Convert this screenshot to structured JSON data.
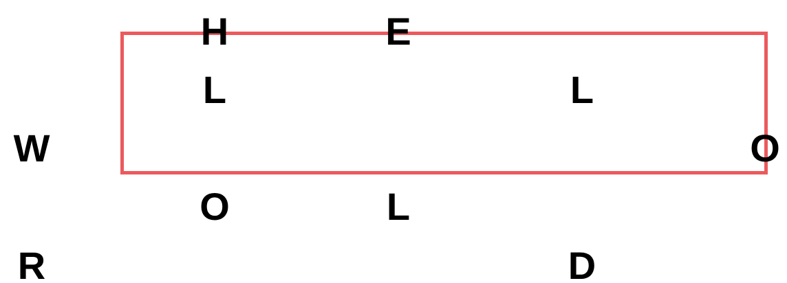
{
  "colors": {
    "background": "#ffffff",
    "box_stroke": "#eb5a5d",
    "text": "#000000"
  },
  "letters": {
    "h": "H",
    "e": "E",
    "l_1": "L",
    "l_2": "L",
    "w": "W",
    "o_1": "O",
    "o_2": "O",
    "l_3": "L",
    "r": "R",
    "d": "D"
  }
}
